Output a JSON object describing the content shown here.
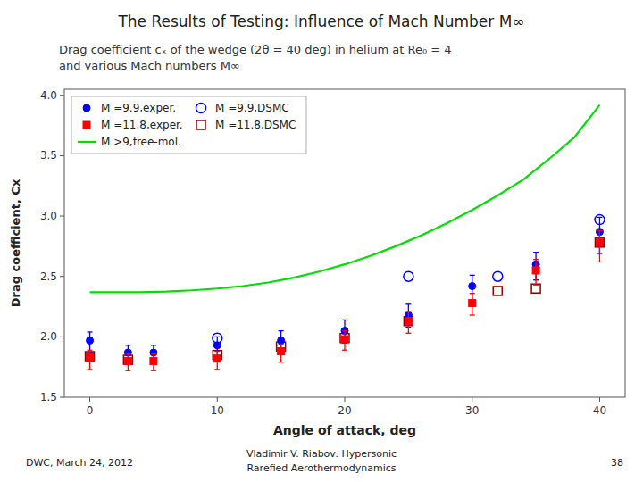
{
  "chart_data": {
    "type": "scatter",
    "title": "The Results of Testing: Influence of Mach Number M∞",
    "subtitle": [
      "Drag coefficient cₓ of the wedge (2θ = 40 deg) in helium at Re₀ = 4",
      "and various Mach numbers M∞"
    ],
    "x_label": "Angle of attack, deg",
    "y_label": "Drag coefficient, Cx",
    "xlim": [
      -2,
      42
    ],
    "ylim": [
      1.5,
      4.05
    ],
    "xticks": [
      0,
      10,
      20,
      30,
      40
    ],
    "yticks": [
      1.5,
      {
        "value": 2,
        "label": "2.0"
      },
      2.5,
      {
        "value": 3,
        "label": "3.0"
      },
      3.5,
      {
        "value": 4,
        "label": "4.0"
      }
    ],
    "grid": false,
    "legend": "upper-left",
    "series": [
      {
        "name": "M =9.9,exper.",
        "type": "scatter",
        "marker": "circle",
        "color": "#0000ff",
        "x": [
          0,
          3,
          5,
          10,
          15,
          20,
          25,
          30,
          35,
          40
        ],
        "values": [
          1.97,
          1.87,
          1.87,
          1.93,
          1.97,
          2.05,
          2.18,
          2.42,
          2.6,
          2.87
        ],
        "error_low": [
          0.1,
          0.08,
          0.08,
          0.1,
          0.1,
          0.1,
          0.1,
          0.12,
          0.13,
          0.18
        ],
        "error_high": [
          0.07,
          0.06,
          0.06,
          0.07,
          0.08,
          0.09,
          0.09,
          0.09,
          0.1,
          0.12
        ]
      },
      {
        "name": "M =11.8,exper.",
        "type": "scatter",
        "marker": "square",
        "color": "#ff0000",
        "x": [
          0,
          3,
          5,
          10,
          15,
          20,
          25,
          30,
          35,
          40
        ],
        "values": [
          1.83,
          1.8,
          1.8,
          1.82,
          1.88,
          1.98,
          2.13,
          2.28,
          2.55,
          2.78
        ],
        "error_low": [
          0.1,
          0.08,
          0.08,
          0.09,
          0.09,
          0.09,
          0.1,
          0.1,
          0.12,
          0.16
        ],
        "error_high": [
          0.06,
          0.06,
          0.06,
          0.06,
          0.06,
          0.07,
          0.08,
          0.08,
          0.09,
          0.1
        ]
      },
      {
        "name": "M >9,free-mol.",
        "type": "line",
        "line_style": "solid",
        "color": "#00dd00",
        "x": [
          0,
          2,
          4,
          6,
          8,
          10,
          12,
          14,
          16,
          18,
          20,
          22,
          24,
          26,
          28,
          30,
          32,
          34,
          36,
          38,
          40
        ],
        "values": [
          2.37,
          2.37,
          2.37,
          2.375,
          2.385,
          2.4,
          2.42,
          2.45,
          2.49,
          2.54,
          2.6,
          2.67,
          2.75,
          2.84,
          2.94,
          3.05,
          3.17,
          3.3,
          3.47,
          3.65,
          3.92
        ]
      },
      {
        "name": "M =9.9,DSMC",
        "type": "scatter",
        "marker": "open-circle",
        "color": "#0000ff",
        "x": [
          10,
          25,
          32,
          40
        ],
        "values": [
          1.99,
          2.5,
          2.5,
          2.97
        ]
      },
      {
        "name": "M =11.8,DSMC",
        "type": "scatter",
        "marker": "open-square",
        "color": "#8B0000",
        "x": [
          0,
          3,
          10,
          15,
          20,
          25,
          32,
          35,
          40
        ],
        "values": [
          1.84,
          1.81,
          1.85,
          1.92,
          1.99,
          2.13,
          2.38,
          2.4,
          2.78
        ]
      }
    ],
    "annotations": [
      "DWC, March 24, 2012",
      "Vladimir V. Riabov: Hypersonic",
      "Rarefied Aerothermodynamics",
      "38"
    ]
  }
}
